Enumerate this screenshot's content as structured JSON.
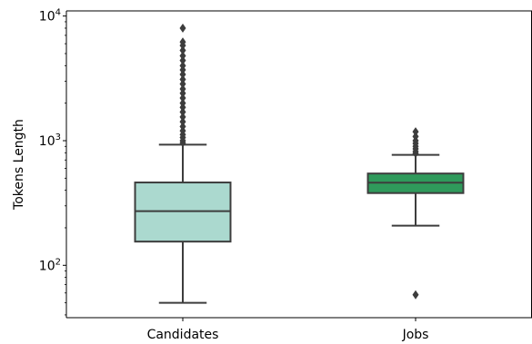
{
  "chart_data": {
    "type": "box",
    "ylabel": "Tokens Length",
    "yscale": "log",
    "ylim": [
      38,
      11000
    ],
    "grid": false,
    "y_ticks": [
      {
        "value": 100,
        "base": "10",
        "exp": "2"
      },
      {
        "value": 1000,
        "base": "10",
        "exp": "3"
      },
      {
        "value": 10000,
        "base": "10",
        "exp": "4"
      }
    ],
    "categories": [
      "Candidates",
      "Jobs"
    ],
    "boxes": [
      {
        "name": "Candidates",
        "color": "#abd9cf",
        "whisker_low": 50,
        "q1": 155,
        "median": 272,
        "q3": 462,
        "whisker_high": 930,
        "outliers": [
          960,
          1000,
          1060,
          1120,
          1200,
          1300,
          1420,
          1550,
          1700,
          1850,
          2000,
          2200,
          2400,
          2600,
          2850,
          3100,
          3400,
          3700,
          4000,
          4400,
          4800,
          5300,
          5800,
          6200,
          8000
        ]
      },
      {
        "name": "Jobs",
        "color": "#2f9a5b",
        "whisker_low": 208,
        "q1": 380,
        "median": 460,
        "q3": 545,
        "whisker_high": 770,
        "outliers": [
          58,
          790,
          820,
          860,
          900,
          950,
          1000,
          1080,
          1180
        ]
      }
    ]
  }
}
